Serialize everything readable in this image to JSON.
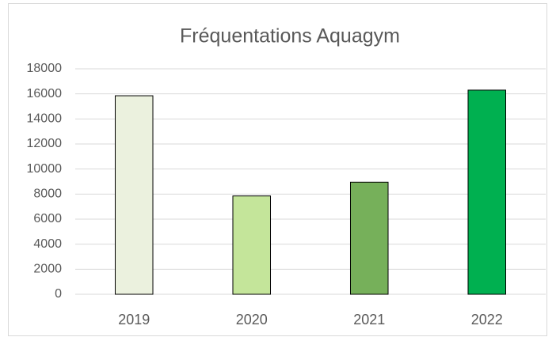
{
  "chart_data": {
    "type": "bar",
    "title": "Fréquentations Aquagym",
    "categories": [
      "2019",
      "2020",
      "2021",
      "2022"
    ],
    "values": [
      15850,
      7850,
      8950,
      16300
    ],
    "colors": [
      "#ebf1de",
      "#c4e59a",
      "#76b05a",
      "#00b050"
    ],
    "ylim": [
      0,
      18000
    ],
    "yticks": [
      0,
      2000,
      4000,
      6000,
      8000,
      10000,
      12000,
      14000,
      16000,
      18000
    ],
    "grid": true
  }
}
